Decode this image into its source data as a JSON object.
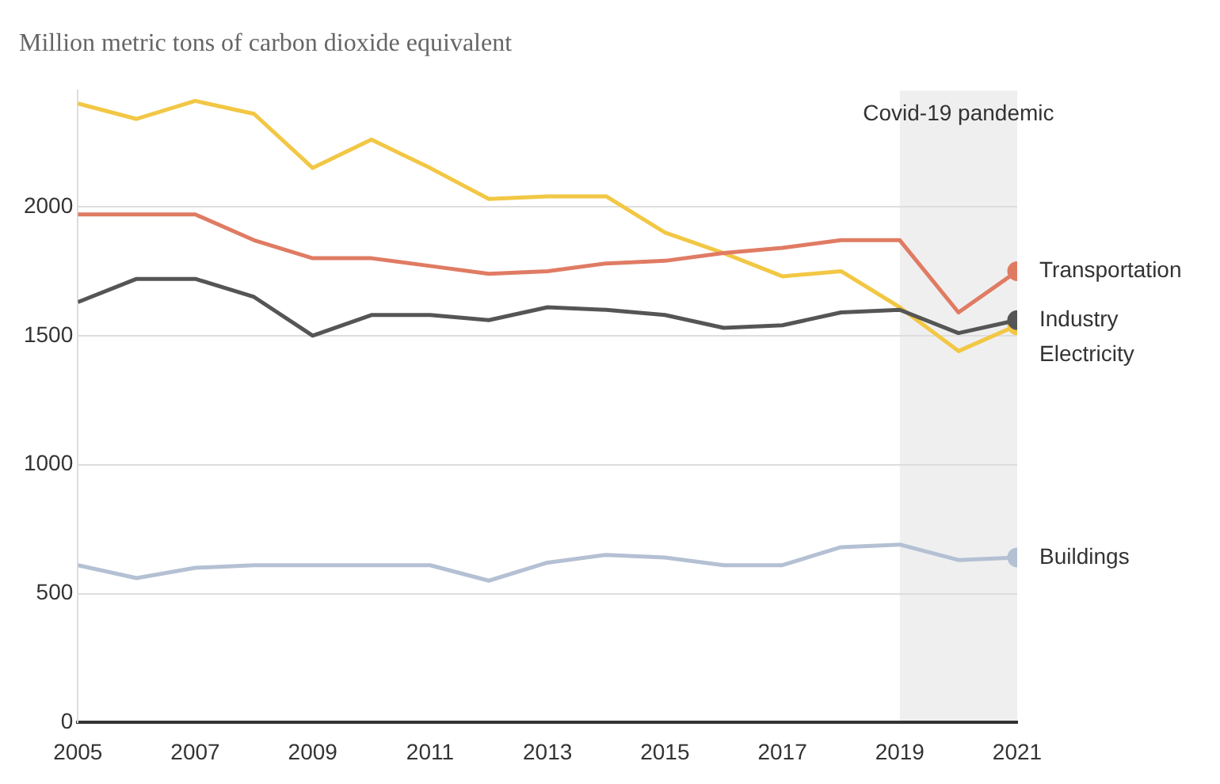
{
  "chart_data": {
    "type": "line",
    "title": "Million metric tons of carbon dioxide equivalent",
    "x": [
      2005,
      2006,
      2007,
      2008,
      2009,
      2010,
      2011,
      2012,
      2013,
      2014,
      2015,
      2016,
      2017,
      2018,
      2019,
      2020,
      2021
    ],
    "series": [
      {
        "name": "Transportation",
        "color": "#e07b63",
        "values": [
          1970,
          1970,
          1970,
          1870,
          1800,
          1800,
          1770,
          1740,
          1750,
          1780,
          1790,
          1820,
          1840,
          1870,
          1870,
          1590,
          1750
        ]
      },
      {
        "name": "Industry",
        "color": "#555555",
        "values": [
          1630,
          1720,
          1720,
          1650,
          1500,
          1580,
          1580,
          1560,
          1610,
          1600,
          1580,
          1530,
          1540,
          1590,
          1600,
          1510,
          1560
        ]
      },
      {
        "name": "Electricity",
        "color": "#f2c744",
        "values": [
          2400,
          2340,
          2410,
          2360,
          2150,
          2260,
          2150,
          2030,
          2040,
          2040,
          1900,
          1820,
          1730,
          1750,
          1610,
          1440,
          1540
        ]
      },
      {
        "name": "Buildings",
        "color": "#b4c0d3",
        "values": [
          610,
          560,
          600,
          610,
          610,
          610,
          610,
          550,
          620,
          650,
          640,
          610,
          610,
          680,
          690,
          630,
          640
        ]
      }
    ],
    "xlim": [
      2005,
      2021
    ],
    "xticks": [
      2005,
      2007,
      2009,
      2011,
      2013,
      2015,
      2017,
      2019,
      2021
    ],
    "ylim": [
      0,
      2450
    ],
    "yticks": [
      0,
      500,
      1000,
      1500,
      2000
    ],
    "bands": [
      {
        "axis": "x",
        "from": 2019,
        "to": 2021,
        "label": "Covid-19 pandemic",
        "color": "#efefef"
      }
    ],
    "grid": "y",
    "legend": false,
    "line_style": "solid"
  }
}
